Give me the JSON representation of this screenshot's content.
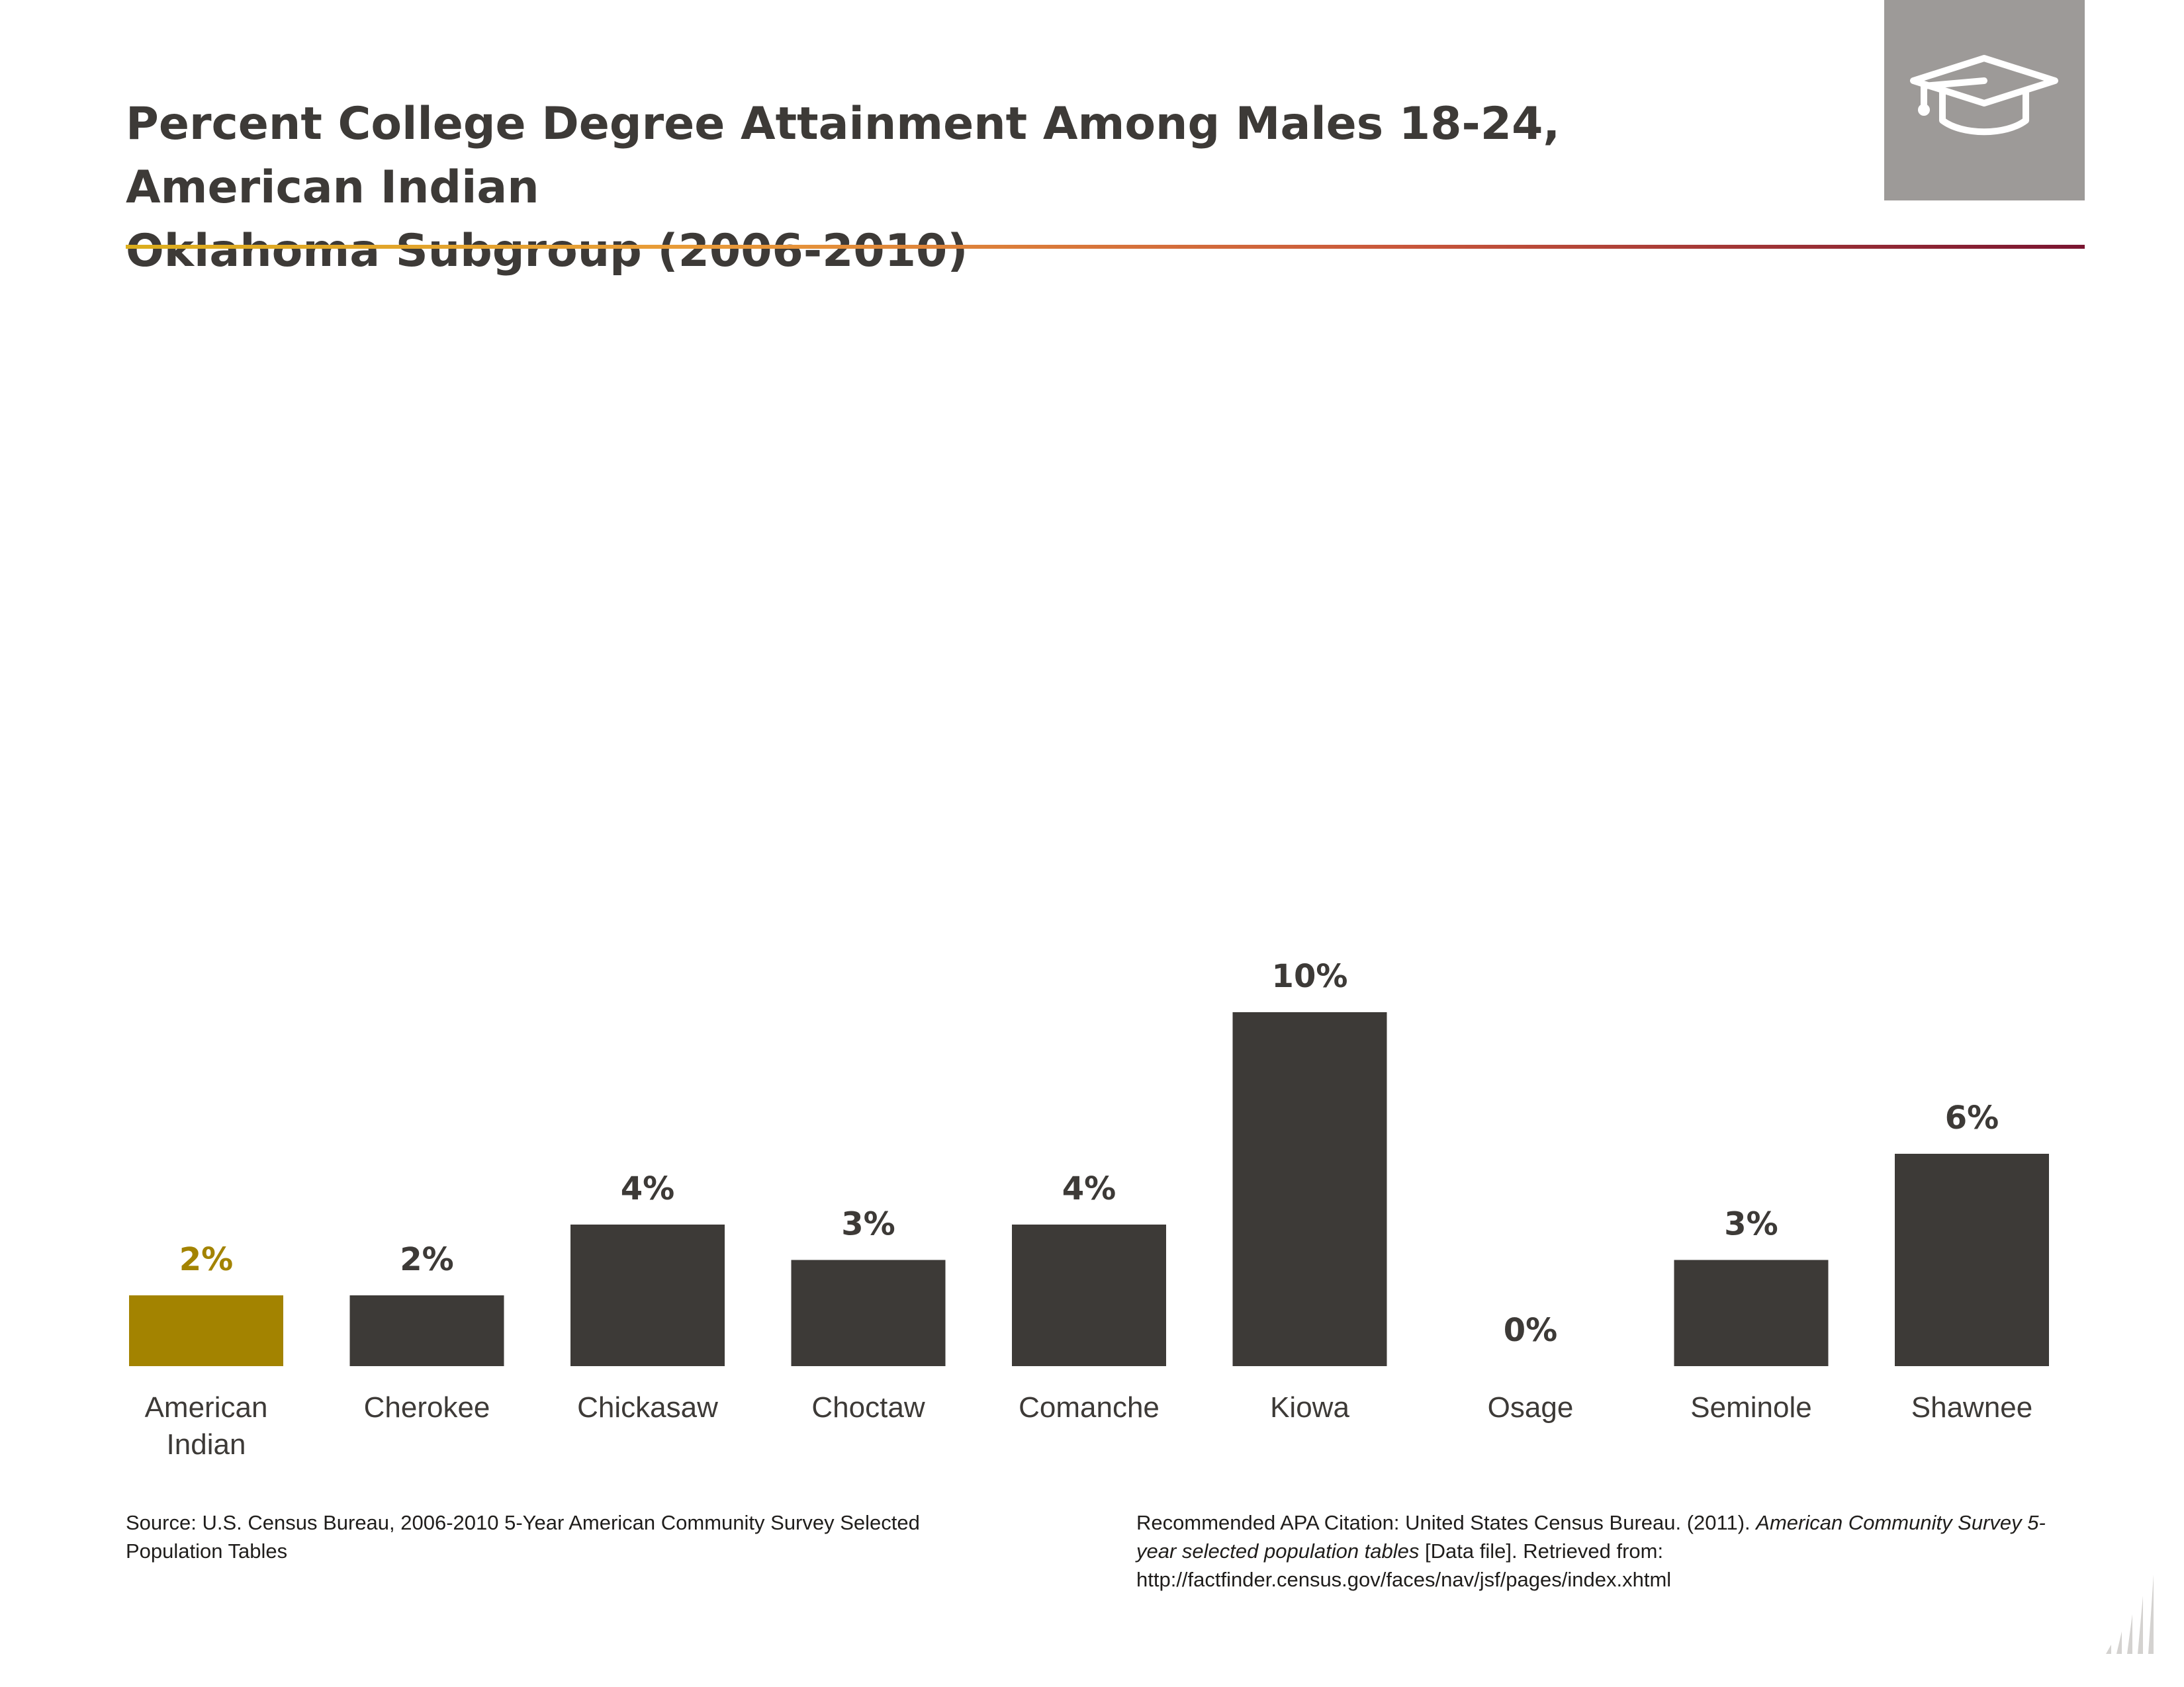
{
  "header": {
    "title_line1": "Percent College Degree Attainment Among Males 18-24, American Indian",
    "title_line2": "Oklahoma Subgroup (2006-2010)",
    "icon": "graduation-cap-icon",
    "icon_box_color": "#9d9a98"
  },
  "footer": {
    "source": "Source: U.S. Census Bureau, 2006-2010 5-Year American Community Survey Selected Population Tables",
    "citation_prefix": "Recommended APA Citation: United States Census Bureau. (2011). ",
    "citation_title": "American Community Survey 5-year selected population tables",
    "citation_suffix": " [Data file]. Retrieved from: http://factfinder.census.gov/faces/nav/jsf/pages/index.xhtml",
    "logo_icon": "bar-chart-logo-icon"
  },
  "colors": {
    "highlight": "#a38300",
    "bar": "#3d3a37",
    "label": "#3d3a37"
  },
  "chart_data": {
    "type": "bar",
    "categories": [
      "American Indian",
      "Cherokee",
      "Chickasaw",
      "Choctaw",
      "Comanche",
      "Kiowa",
      "Osage",
      "Seminole",
      "Shawnee"
    ],
    "values": [
      2,
      2,
      4,
      3,
      4,
      10,
      0,
      3,
      6
    ],
    "value_labels": [
      "2%",
      "2%",
      "4%",
      "3%",
      "4%",
      "10%",
      "0%",
      "3%",
      "6%"
    ],
    "highlighted_index": 0,
    "ylim": [
      0,
      10
    ],
    "grid": false,
    "legend": "none"
  }
}
